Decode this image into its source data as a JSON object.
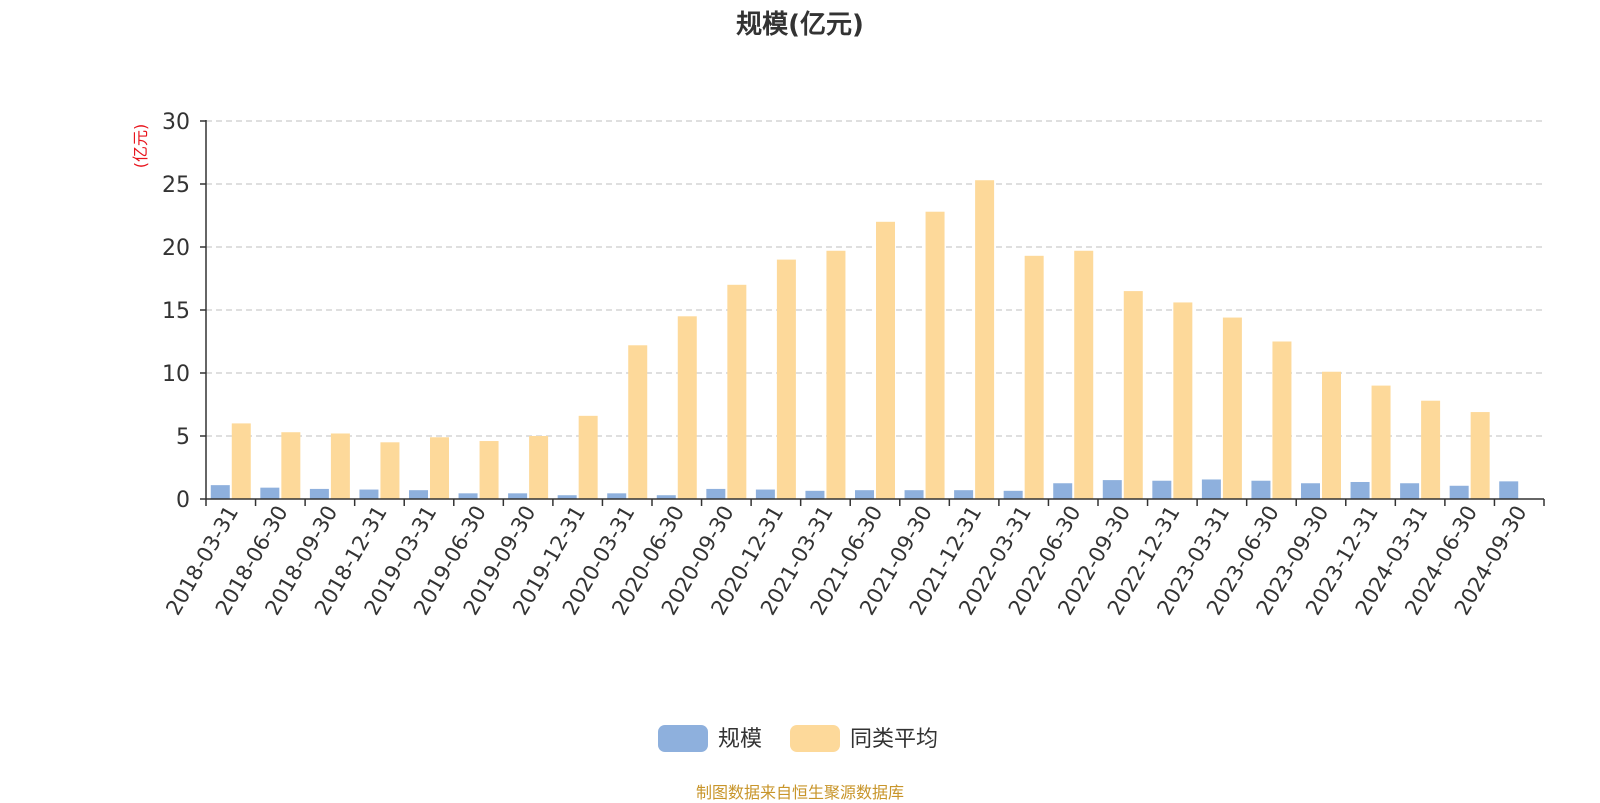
{
  "chart_data": {
    "type": "bar",
    "title": "规模(亿元)",
    "ylabel": "(亿元)",
    "ylim": [
      0,
      30
    ],
    "yticks": [
      0,
      5,
      10,
      15,
      20,
      25,
      30
    ],
    "grid": "horizontal-dashed",
    "legend_position": "bottom-center",
    "categories": [
      "2018-03-31",
      "2018-06-30",
      "2018-09-30",
      "2018-12-31",
      "2019-03-31",
      "2019-06-30",
      "2019-09-30",
      "2019-12-31",
      "2020-03-31",
      "2020-06-30",
      "2020-09-30",
      "2020-12-31",
      "2021-03-31",
      "2021-06-30",
      "2021-09-30",
      "2021-12-31",
      "2022-03-31",
      "2022-06-30",
      "2022-09-30",
      "2022-12-31",
      "2023-03-31",
      "2023-06-30",
      "2023-09-30",
      "2023-12-31",
      "2024-03-31",
      "2024-06-30",
      "2024-09-30"
    ],
    "series": [
      {
        "name": "规模",
        "color": "#8eb0dd",
        "values": [
          1.1,
          0.9,
          0.8,
          0.75,
          0.7,
          0.45,
          0.45,
          0.3,
          0.45,
          0.3,
          0.8,
          0.75,
          0.65,
          0.7,
          0.7,
          0.7,
          0.65,
          1.25,
          1.5,
          1.45,
          1.55,
          1.45,
          1.25,
          1.35,
          1.25,
          1.05,
          1.4
        ]
      },
      {
        "name": "同类平均",
        "color": "#fdd99a",
        "values": [
          6.0,
          5.3,
          5.2,
          4.5,
          4.9,
          4.6,
          5.0,
          6.6,
          12.2,
          14.5,
          17.0,
          19.0,
          19.7,
          22.0,
          22.8,
          25.3,
          19.3,
          19.7,
          16.5,
          15.6,
          14.4,
          12.5,
          10.1,
          9.0,
          7.8,
          6.9,
          null
        ]
      }
    ]
  },
  "source_note": "制图数据来自恒生聚源数据库"
}
